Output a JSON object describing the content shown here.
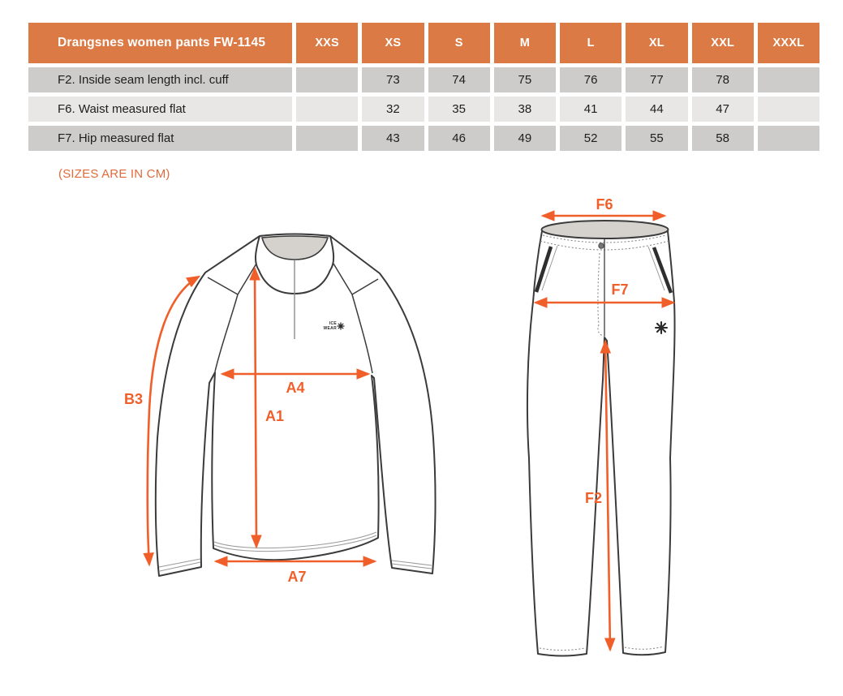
{
  "table": {
    "title": "Drangsnes women pants FW-1145",
    "sizes": [
      "XXS",
      "XS",
      "S",
      "M",
      "L",
      "XL",
      "XXL",
      "XXXL"
    ],
    "rows": [
      {
        "label": "F2. Inside seam length incl. cuff",
        "values": [
          "",
          "73",
          "74",
          "75",
          "76",
          "77",
          "78",
          ""
        ]
      },
      {
        "label": "F6. Waist measured flat",
        "values": [
          "",
          "32",
          "35",
          "38",
          "41",
          "44",
          "47",
          ""
        ]
      },
      {
        "label": "F7. Hip measured flat",
        "values": [
          "",
          "43",
          "46",
          "49",
          "52",
          "55",
          "58",
          ""
        ]
      }
    ]
  },
  "note": "(SIZES ARE IN CM)",
  "shirt_diagram": {
    "b3": "B3",
    "a4": "A4",
    "a1": "A1",
    "a7": "A7",
    "logo_line1": "ICE",
    "logo_line2": "WEAR"
  },
  "pants_diagram": {
    "f6": "F6",
    "f7": "F7",
    "f2": "F2"
  },
  "colors": {
    "header_orange": "#DC7A45",
    "arrow_orange": "#F05F2A",
    "note_orange": "#DF6B3C",
    "row_dark": "#CDCCCA",
    "row_light": "#E8E7E5",
    "garment_outline": "#3B3B3B",
    "collar_gray": "#D5D2CE"
  }
}
